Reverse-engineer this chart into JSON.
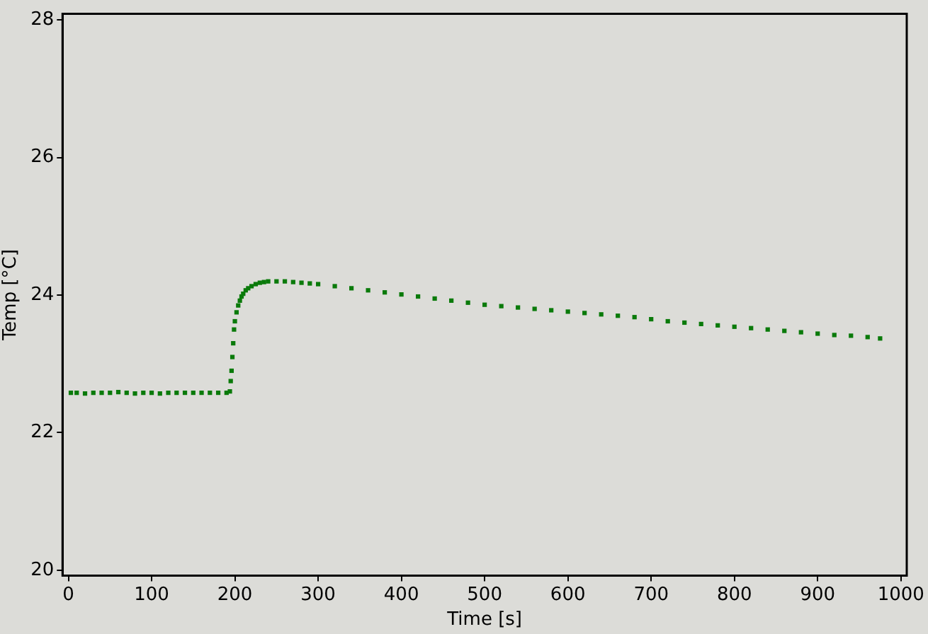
{
  "chart_data": {
    "type": "scatter",
    "xlabel": "Time [s]",
    "ylabel": "Temp [°C]",
    "marker": "square",
    "grid": false,
    "legend": false,
    "xlim": [
      -7,
      1007
    ],
    "xticks": [
      0,
      100,
      200,
      300,
      400,
      500,
      600,
      700,
      800,
      900,
      1000
    ],
    "ylim": [
      19.92,
      28.09
    ],
    "yticks": [
      20,
      22,
      24,
      26,
      28
    ],
    "series": [
      {
        "color": "#0a7a0a",
        "x": [
          3,
          10,
          20,
          30,
          40,
          50,
          60,
          70,
          80,
          90,
          100,
          110,
          120,
          130,
          140,
          150,
          160,
          170,
          180,
          190,
          194,
          195,
          196,
          197,
          198,
          199,
          200,
          202,
          204,
          206,
          208,
          210,
          213,
          216,
          220,
          225,
          230,
          235,
          240,
          250,
          260,
          270,
          280,
          290,
          300,
          320,
          340,
          360,
          380,
          400,
          420,
          440,
          460,
          480,
          500,
          520,
          540,
          560,
          580,
          600,
          620,
          640,
          660,
          680,
          700,
          720,
          740,
          760,
          780,
          800,
          820,
          840,
          860,
          880,
          900,
          920,
          940,
          960,
          975
        ],
        "values": [
          22.58,
          22.58,
          22.57,
          22.58,
          22.58,
          22.58,
          22.59,
          22.58,
          22.57,
          22.58,
          22.58,
          22.57,
          22.58,
          22.58,
          22.58,
          22.58,
          22.58,
          22.58,
          22.58,
          22.58,
          22.6,
          22.75,
          22.9,
          23.1,
          23.3,
          23.5,
          23.62,
          23.75,
          23.85,
          23.92,
          23.98,
          24.02,
          24.07,
          24.1,
          24.13,
          24.16,
          24.18,
          24.19,
          24.2,
          24.2,
          24.2,
          24.19,
          24.18,
          24.17,
          24.16,
          24.13,
          24.1,
          24.07,
          24.04,
          24.01,
          23.98,
          23.95,
          23.92,
          23.89,
          23.86,
          23.84,
          23.82,
          23.8,
          23.78,
          23.76,
          23.74,
          23.72,
          23.7,
          23.68,
          23.65,
          23.62,
          23.6,
          23.58,
          23.56,
          23.54,
          23.52,
          23.5,
          23.48,
          23.46,
          23.44,
          23.42,
          23.41,
          23.39,
          23.37
        ]
      }
    ]
  }
}
